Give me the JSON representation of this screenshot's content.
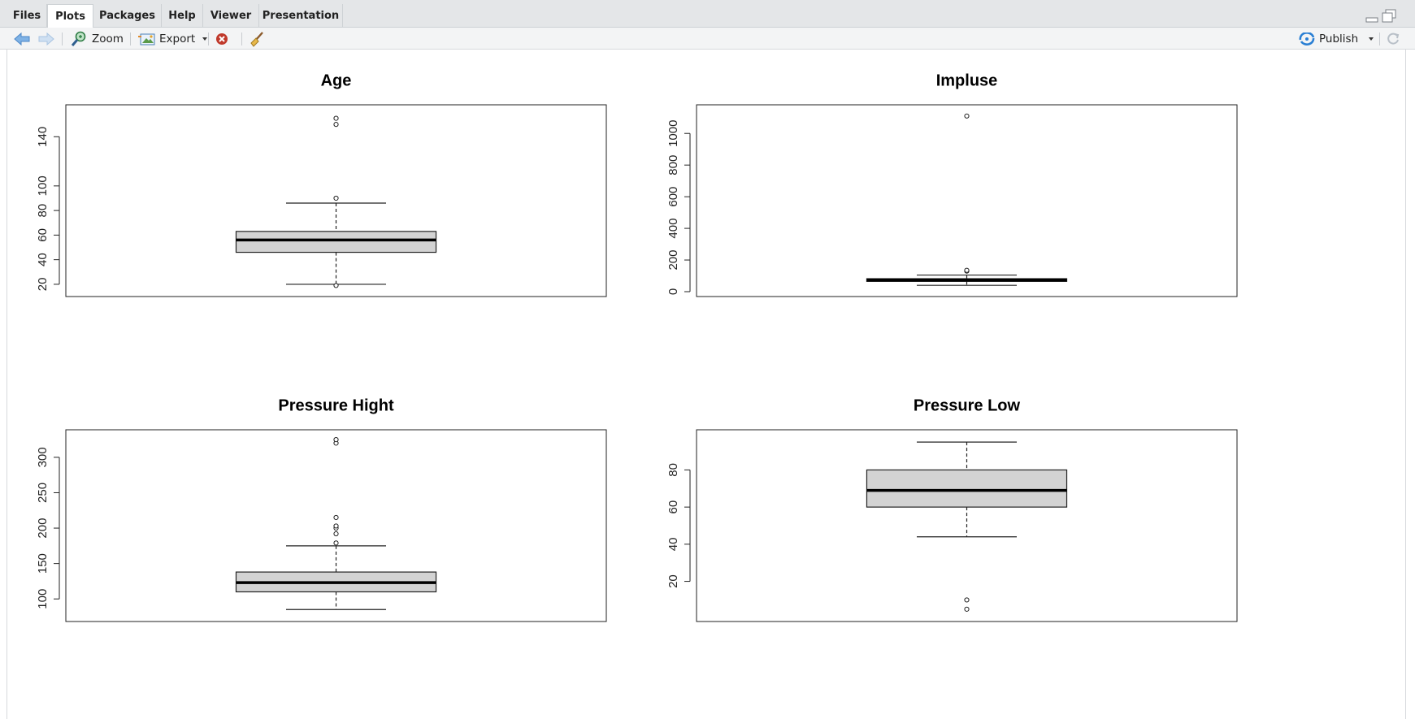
{
  "tabs": [
    {
      "label": "Files",
      "active": false
    },
    {
      "label": "Plots",
      "active": true
    },
    {
      "label": "Packages",
      "active": false
    },
    {
      "label": "Help",
      "active": false
    },
    {
      "label": "Viewer",
      "active": false
    },
    {
      "label": "Presentation",
      "active": false
    }
  ],
  "toolbar": {
    "zoom_label": "Zoom",
    "export_label": "Export",
    "publish_label": "Publish"
  },
  "icons": {
    "back": "arrow-left-icon",
    "forward": "arrow-right-icon",
    "zoom": "magnifier-icon",
    "export": "image-export-icon",
    "remove": "red-x-circle-icon",
    "clear": "broom-icon",
    "publish": "publish-icon",
    "refresh": "refresh-icon",
    "minimize": "minimize-icon",
    "maximize": "maximize-icon"
  },
  "colors": {
    "box_fill": "#d3d3d3",
    "accent_blue": "#4a90d9",
    "remove_red": "#c0392b"
  },
  "chart_data": [
    {
      "type": "boxplot",
      "title": "Age",
      "ylim": [
        14,
        162
      ],
      "yticks": [
        20,
        40,
        60,
        80,
        100,
        140
      ],
      "whisker_low": 20,
      "q1": 46,
      "median": 56,
      "q3": 63,
      "whisker_high": 86,
      "outliers": [
        19,
        90,
        150,
        155
      ]
    },
    {
      "type": "boxplot",
      "title": "Impluse",
      "ylim": [
        0,
        1150
      ],
      "yticks": [
        0,
        200,
        400,
        600,
        800,
        1000
      ],
      "whisker_low": 40,
      "q1": 65,
      "median": 73,
      "q3": 82,
      "whisker_high": 105,
      "outliers": [
        130,
        135,
        1110
      ]
    },
    {
      "type": "boxplot",
      "title": "Pressure Hight",
      "ylim": [
        75,
        332
      ],
      "yticks": [
        100,
        150,
        200,
        250,
        300
      ],
      "whisker_low": 85,
      "q1": 110,
      "median": 123,
      "q3": 138,
      "whisker_high": 175,
      "outliers": [
        179,
        192,
        200,
        203,
        215,
        320,
        325
      ]
    },
    {
      "type": "boxplot",
      "title": "Pressure Low",
      "ylim": [
        1,
        99
      ],
      "yticks": [
        20,
        40,
        60,
        80
      ],
      "whisker_low": 44,
      "q1": 60,
      "median": 69,
      "q3": 80,
      "whisker_high": 95,
      "outliers": [
        5,
        10
      ]
    }
  ]
}
